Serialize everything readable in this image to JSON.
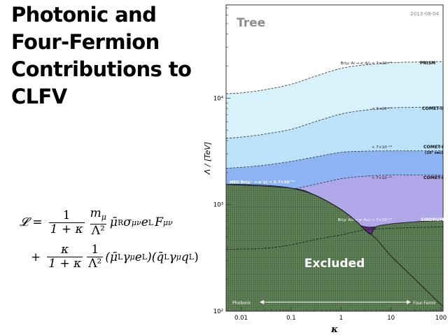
{
  "slide": {
    "title_lines": [
      "Photonic and",
      "Four-Fermion",
      "Contributions to",
      "CLFV"
    ]
  },
  "formula": {
    "lhs": "𝓛",
    "eq": "=",
    "plus": "+",
    "one": "1",
    "kappa": "κ",
    "denom": "1 + κ",
    "m_mu": "m",
    "mu": "μ",
    "Lambda2": "Λ²",
    "term1": "μ̄",
    "R": "R",
    "sigma": "σ",
    "munu": "μν",
    "e": "e",
    "L": "L",
    "F": "F",
    "term2a": "(μ̄",
    "gamma": "γ",
    "term2b": ")(q̄",
    "term2c": "q",
    "close": ")"
  },
  "chart_data": {
    "type": "area",
    "panel_label": "Tree",
    "date": "2013-08-04",
    "xlabel": "κ",
    "ylabel": "Λ / [TeV]",
    "xscale": "log",
    "yscale": "log",
    "xlim": [
      0.005,
      110
    ],
    "ylim": [
      100,
      75000
    ],
    "x_ticks": [
      {
        "v": 0.01,
        "label": "0.01"
      },
      {
        "v": 0.1,
        "label": "0.1"
      },
      {
        "v": 1,
        "label": "1"
      },
      {
        "v": 10,
        "label": "10"
      },
      {
        "v": 100,
        "label": "100"
      }
    ],
    "y_ticks": [
      {
        "v": 100,
        "label": "10²"
      },
      {
        "v": 1000,
        "label": "10³"
      },
      {
        "v": 10000,
        "label": "10⁴"
      }
    ],
    "kappa": [
      0.005,
      0.01,
      0.03,
      0.1,
      0.3,
      1,
      3,
      10,
      30,
      110
    ],
    "bands": [
      {
        "name": "PRISM",
        "limit": "Br(μ⁻Al → e⁻Al) < 7×10⁻¹⁹",
        "color": "#d6f1fb",
        "lambda": [
          11000,
          11200,
          12000,
          13500,
          16000,
          19000,
          20500,
          21500,
          21800,
          22000
        ]
      },
      {
        "name": "COMET-II",
        "limit": "< 3×10⁻¹⁷",
        "color": "#b9e0f8",
        "lambda": [
          4200,
          4300,
          4600,
          5100,
          6000,
          7100,
          7700,
          8100,
          8200,
          8300
        ]
      },
      {
        "name": "COMET-I",
        "note": "(10⁷ sec)",
        "limit": "< 7×10⁻¹⁶",
        "color": "#8ab0f3",
        "lambda": [
          2200,
          2240,
          2350,
          2550,
          2800,
          3100,
          3180,
          3200,
          3200,
          3200
        ]
      },
      {
        "name": "COMET-I",
        "limit": "< 7×10⁻¹⁵",
        "color": "#b2a7e8",
        "lambda": [
          1350,
          1360,
          1380,
          1400,
          1550,
          1750,
          1850,
          1900,
          1900,
          1900
        ]
      },
      {
        "name": "SINDRUM II",
        "limit": "Br(μ⁻Au → e⁻Au) < 7×10⁻¹³",
        "color": "#5a2f73",
        "lambda": [
          1500,
          1500,
          1480,
          1420,
          1150,
          800,
          620,
          650,
          680,
          700
        ]
      }
    ],
    "excluded": {
      "label": "Excluded",
      "color": "#4b6e43",
      "meg_limit": "MEG  Br(μ⁺ → e⁺γ) < 5.7×10⁻¹³",
      "meg_kappa": [
        0.005,
        0.01,
        0.03,
        0.1,
        0.3,
        1,
        2,
        3,
        5,
        10,
        30,
        110
      ],
      "meg_lambda": [
        1550,
        1550,
        1520,
        1430,
        1230,
        900,
        700,
        580,
        480,
        330,
        200,
        110
      ],
      "boundary_kappa": [
        0.005,
        0.1,
        0.3,
        1,
        2,
        3,
        4,
        5,
        10,
        30,
        110
      ],
      "boundary_lambda": [
        1550,
        1430,
        1230,
        900,
        700,
        580,
        530,
        620,
        660,
        690,
        710
      ]
    },
    "arrow": {
      "left": "Photonic",
      "right": "Four-Fermi"
    }
  }
}
